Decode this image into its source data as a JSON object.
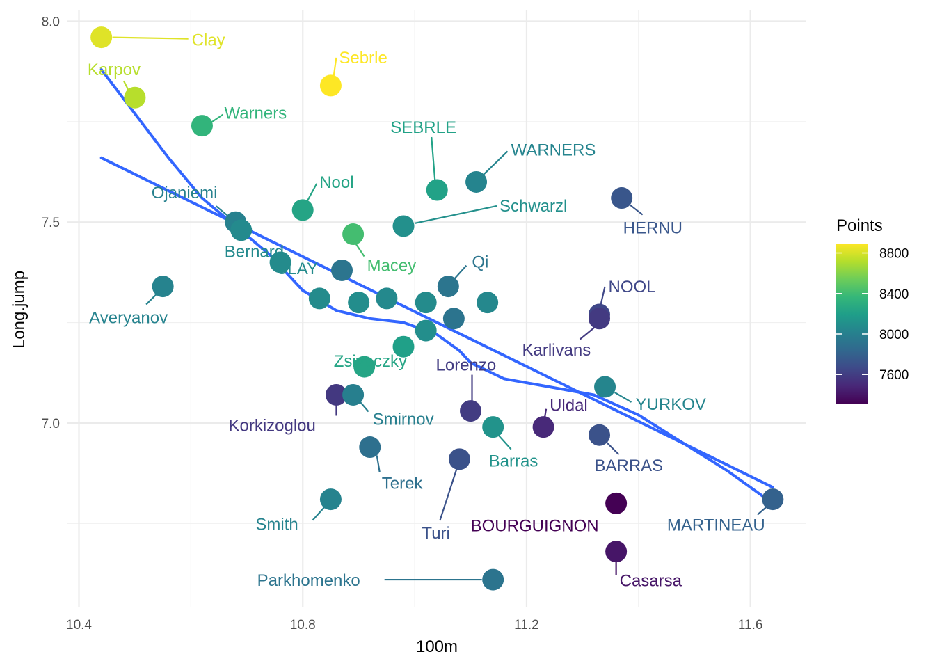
{
  "chart_data": {
    "type": "scatter",
    "xlabel": "100m",
    "ylabel": "Long.jump",
    "xlim": [
      10.4,
      11.65
    ],
    "ylim": [
      6.55,
      8.02
    ],
    "x_ticks": [
      10.4,
      10.8,
      11.2,
      11.6
    ],
    "x_tick_labels": [
      "10.4",
      "10.8",
      "11.2",
      "11.6"
    ],
    "y_ticks": [
      7.0,
      7.5,
      8.0
    ],
    "y_tick_labels": [
      "7.0",
      "7.5",
      "8.0"
    ],
    "grid": true,
    "color_scale": {
      "title": "Points",
      "palette": "viridis",
      "min": 7313,
      "max": 8893,
      "ticks": [
        7600,
        8000,
        8400,
        8800
      ],
      "tick_labels": [
        "7600",
        "8000",
        "8400",
        "8800"
      ],
      "stops": [
        "#440154",
        "#482878",
        "#3E4A89",
        "#31688E",
        "#26828E",
        "#1F9E89",
        "#35B779",
        "#6DCD59",
        "#B4DE2C",
        "#FDE725"
      ],
      "position": "right"
    },
    "labeled_points": [
      {
        "label": "Clay",
        "x": 10.44,
        "y": 7.96,
        "points": 8820
      },
      {
        "label": "Karpov",
        "x": 10.5,
        "y": 7.81,
        "points": 8725
      },
      {
        "label": "Sebrle",
        "x": 10.85,
        "y": 7.84,
        "points": 8893
      },
      {
        "label": "Warners",
        "x": 10.62,
        "y": 7.74,
        "points": 8343
      },
      {
        "label": "SEBRLE",
        "x": 11.04,
        "y": 7.58,
        "points": 8217
      },
      {
        "label": "WARNERS",
        "x": 11.11,
        "y": 7.6,
        "points": 8030
      },
      {
        "label": "Nool",
        "x": 10.8,
        "y": 7.53,
        "points": 8235
      },
      {
        "label": "Schwarzl",
        "x": 10.98,
        "y": 7.49,
        "points": 8102
      },
      {
        "label": "HERNU",
        "x": 11.37,
        "y": 7.56,
        "points": 7733
      },
      {
        "label": "Ojaniemi",
        "x": 10.68,
        "y": 7.5,
        "points": 8006
      },
      {
        "label": "Bernard",
        "x": 10.69,
        "y": 7.48,
        "points": 8067
      },
      {
        "label": "Macey",
        "x": 10.89,
        "y": 7.47,
        "points": 8414
      },
      {
        "label": "Qi",
        "x": 11.06,
        "y": 7.34,
        "points": 7926
      },
      {
        "label": "Averyanov",
        "x": 10.55,
        "y": 7.34,
        "points": 8021
      },
      {
        "label": "CLAY",
        "x": 10.76,
        "y": 7.4,
        "points": 8072
      },
      {
        "label": "NOOL",
        "x": 11.33,
        "y": 7.27,
        "points": 7651
      },
      {
        "label": "Karlivans",
        "x": 11.33,
        "y": 7.26,
        "points": 7583
      },
      {
        "label": "Zsivoczky",
        "x": 10.91,
        "y": 7.14,
        "points": 8237
      },
      {
        "label": "Lorenzo",
        "x": 11.1,
        "y": 7.03,
        "points": 7592
      },
      {
        "label": "YURKOV",
        "x": 11.34,
        "y": 7.09,
        "points": 8036
      },
      {
        "label": "Korkizoglou",
        "x": 10.86,
        "y": 7.07,
        "points": 7573
      },
      {
        "label": "Smirnov",
        "x": 10.89,
        "y": 7.07,
        "points": 7993
      },
      {
        "label": "Uldal",
        "x": 11.23,
        "y": 6.99,
        "points": 7495
      },
      {
        "label": "Barras",
        "x": 11.14,
        "y": 6.99,
        "points": 8120
      },
      {
        "label": "BARRAS",
        "x": 11.33,
        "y": 6.97,
        "points": 7708
      },
      {
        "label": "Terek",
        "x": 10.92,
        "y": 6.94,
        "points": 7893
      },
      {
        "label": "Turi",
        "x": 11.08,
        "y": 6.91,
        "points": 7708
      },
      {
        "label": "Smith",
        "x": 10.85,
        "y": 6.81,
        "points": 8023
      },
      {
        "label": "BOURGUIGNON",
        "x": 11.36,
        "y": 6.8,
        "points": 7313
      },
      {
        "label": "MARTINEAU",
        "x": 11.64,
        "y": 6.81,
        "points": 7802
      },
      {
        "label": "Casarsa",
        "x": 11.36,
        "y": 6.68,
        "points": 7404
      },
      {
        "label": "Parkhomenko",
        "x": 11.14,
        "y": 6.61,
        "points": 7918
      }
    ],
    "unlabeled_points": [
      {
        "x": 10.87,
        "y": 7.38,
        "points": 7926
      },
      {
        "x": 10.83,
        "y": 7.31,
        "points": 8072
      },
      {
        "x": 10.9,
        "y": 7.3,
        "points": 8083
      },
      {
        "x": 10.95,
        "y": 7.31,
        "points": 8061
      },
      {
        "x": 11.02,
        "y": 7.3,
        "points": 8070
      },
      {
        "x": 11.13,
        "y": 7.3,
        "points": 8052
      },
      {
        "x": 11.07,
        "y": 7.26,
        "points": 7922
      },
      {
        "x": 11.02,
        "y": 7.23,
        "points": 8090
      },
      {
        "x": 10.98,
        "y": 7.19,
        "points": 8202
      }
    ],
    "trend_lines": [
      {
        "kind": "linear",
        "color": "#3366FF",
        "x": [
          10.44,
          11.64
        ],
        "y": [
          7.66,
          6.84
        ]
      },
      {
        "kind": "loess",
        "color": "#3366FF",
        "x": [
          10.44,
          10.5,
          10.56,
          10.62,
          10.68,
          10.74,
          10.8,
          10.86,
          10.92,
          10.98,
          11.04,
          11.08,
          11.1,
          11.16,
          11.24,
          11.32,
          11.4,
          11.48,
          11.56,
          11.64
        ],
        "y": [
          7.88,
          7.77,
          7.66,
          7.56,
          7.49,
          7.42,
          7.33,
          7.28,
          7.26,
          7.25,
          7.22,
          7.18,
          7.15,
          7.11,
          7.09,
          7.07,
          7.02,
          6.95,
          6.88,
          6.8
        ]
      }
    ]
  }
}
